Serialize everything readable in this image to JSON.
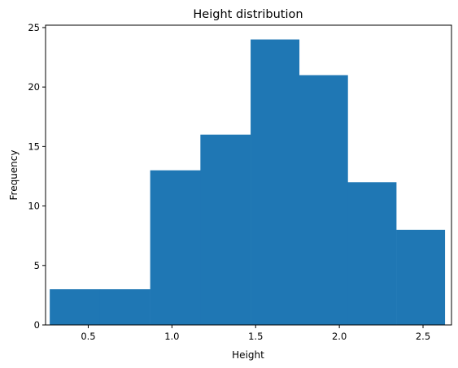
{
  "chart_data": {
    "type": "bar",
    "title": "Height distribution",
    "xlabel": "Height",
    "ylabel": "Frequency",
    "xlim": [
      0.245,
      2.67
    ],
    "ylim": [
      0,
      25.2
    ],
    "x_ticks": [
      0.5,
      1.0,
      1.5,
      2.0,
      2.5
    ],
    "x_tick_labels": [
      "0.5",
      "1.0",
      "1.5",
      "2.0",
      "2.5"
    ],
    "y_ticks": [
      0,
      5,
      10,
      15,
      20,
      25
    ],
    "y_tick_labels": [
      "0",
      "5",
      "10",
      "15",
      "20",
      "25"
    ],
    "bin_edges": [
      0.27,
      0.57,
      0.87,
      1.17,
      1.47,
      1.76,
      2.05,
      2.34,
      2.63
    ],
    "values": [
      3,
      3,
      13,
      16,
      24,
      21,
      12,
      8
    ],
    "bar_color": "#1f77b4",
    "grid": false
  }
}
